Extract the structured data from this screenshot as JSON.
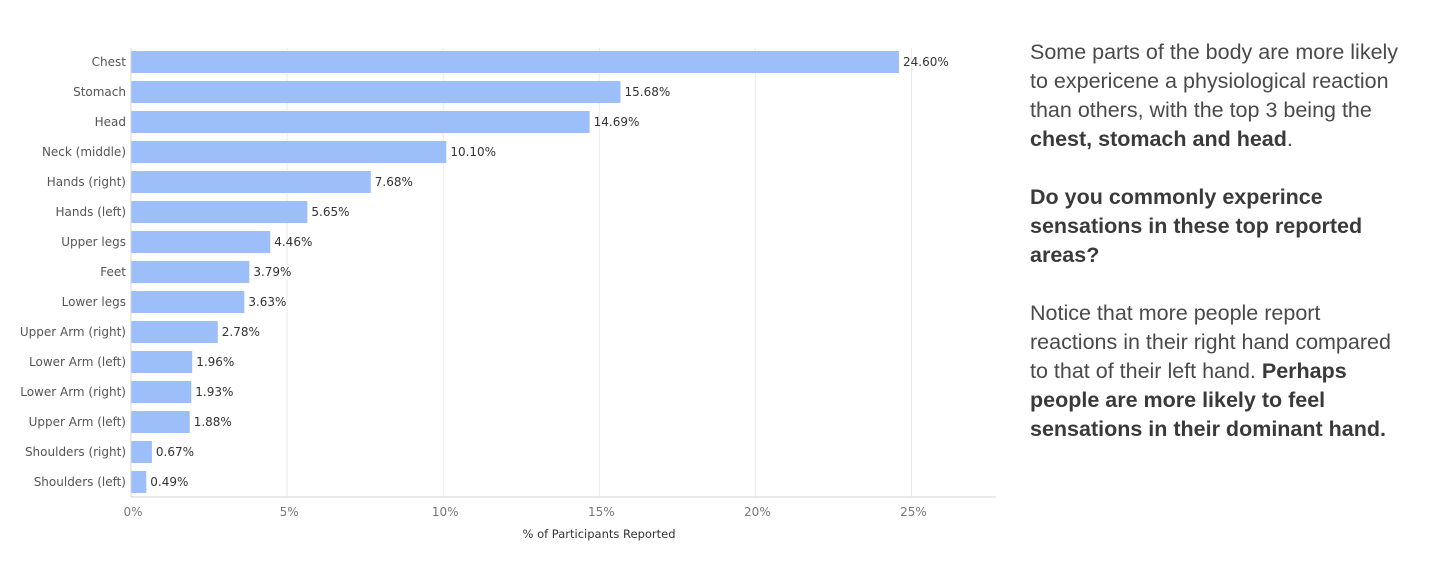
{
  "chart_data": {
    "type": "bar",
    "orientation": "horizontal",
    "categories": [
      "Chest",
      "Stomach",
      "Head",
      "Neck (middle)",
      "Hands (right)",
      "Hands (left)",
      "Upper legs",
      "Feet",
      "Lower legs",
      "Upper Arm (right)",
      "Lower Arm (left)",
      "Lower Arm (right)",
      "Upper Arm (left)",
      "Shoulders (right)",
      "Shoulders (left)"
    ],
    "values": [
      24.6,
      15.68,
      14.69,
      10.1,
      7.68,
      5.65,
      4.46,
      3.79,
      3.63,
      2.78,
      1.96,
      1.93,
      1.88,
      0.67,
      0.49
    ],
    "value_labels": [
      "24.60%",
      "15.68%",
      "14.69%",
      "10.10%",
      "7.68%",
      "5.65%",
      "4.46%",
      "3.79%",
      "3.63%",
      "2.78%",
      "1.96%",
      "1.93%",
      "1.88%",
      "0.67%",
      "0.49%"
    ],
    "xticks": [
      0,
      5,
      10,
      15,
      20,
      25
    ],
    "xtick_labels": [
      "0%",
      "5%",
      "10%",
      "15%",
      "20%",
      "25%"
    ],
    "xlim": [
      0,
      27.4
    ],
    "xlabel": "% of Participants Reported",
    "ylabel": "",
    "title": "",
    "grid": true,
    "bar_color": "#9cbff9"
  },
  "side_text": {
    "p1_a": "Some parts of the body are more likely to expericene a physiological reaction than others, with the top 3 being the ",
    "p1_b": "chest, stomach and head",
    "p1_c": ".",
    "p2": "Do you commonly experince sensations in these top reported areas?",
    "p3_a": "Notice that more people report reactions in their right hand compared to that of their left hand. ",
    "p3_b": "Perhaps people are more likely to feel sensations in their dominant hand."
  }
}
